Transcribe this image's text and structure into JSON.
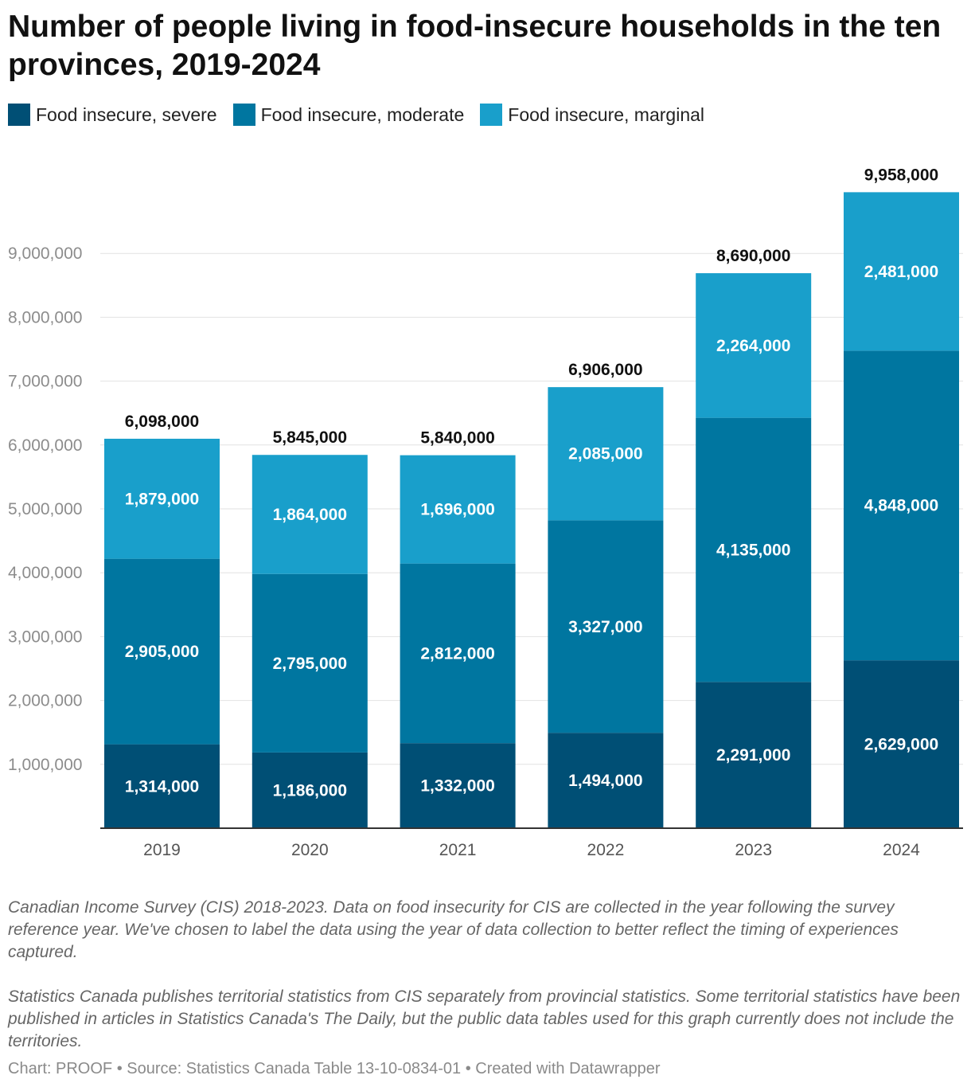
{
  "title": "Number of people living in food-insecure households in the ten provinces, 2019-2024",
  "legend": [
    {
      "label": "Food insecure, severe",
      "color": "#004f75"
    },
    {
      "label": "Food insecure, moderate",
      "color": "#0076a0"
    },
    {
      "label": "Food insecure, marginal",
      "color": "#199fcb"
    }
  ],
  "chart_data": {
    "type": "bar",
    "stacked": true,
    "categories": [
      "2019",
      "2020",
      "2021",
      "2022",
      "2023",
      "2024"
    ],
    "series": [
      {
        "name": "Food insecure, severe",
        "color": "#004f75",
        "values": [
          1314000,
          1186000,
          1332000,
          1494000,
          2291000,
          2629000
        ],
        "labels": [
          "1,314,000",
          "1,186,000",
          "1,332,000",
          "1,494,000",
          "2,291,000",
          "2,629,000"
        ]
      },
      {
        "name": "Food insecure, moderate",
        "color": "#0076a0",
        "values": [
          2905000,
          2795000,
          2812000,
          3327000,
          4135000,
          4848000
        ],
        "labels": [
          "2,905,000",
          "2,795,000",
          "2,812,000",
          "3,327,000",
          "4,135,000",
          "4,848,000"
        ]
      },
      {
        "name": "Food insecure, marginal",
        "color": "#199fcb",
        "values": [
          1879000,
          1864000,
          1696000,
          2085000,
          2264000,
          2481000
        ],
        "labels": [
          "1,879,000",
          "1,864,000",
          "1,696,000",
          "2,085,000",
          "2,264,000",
          "2,481,000"
        ]
      }
    ],
    "totals": [
      6098000,
      5845000,
      5840000,
      6906000,
      8690000,
      9958000
    ],
    "total_labels": [
      "6,098,000",
      "5,845,000",
      "5,840,000",
      "6,906,000",
      "8,690,000",
      "9,958,000"
    ],
    "yticks": [
      1000000,
      2000000,
      3000000,
      4000000,
      5000000,
      6000000,
      7000000,
      8000000,
      9000000
    ],
    "ytick_labels": [
      "1,000,000",
      "2,000,000",
      "3,000,000",
      "4,000,000",
      "5,000,000",
      "6,000,000",
      "7,000,000",
      "8,000,000",
      "9,000,000"
    ],
    "ylim": [
      0,
      10000000
    ],
    "grid": true,
    "legend_position": "top-left"
  },
  "notes": [
    "Canadian Income Survey (CIS) 2018-2023. Data on food insecurity for CIS are collected in the year following the survey reference year. We've chosen to label the data using the year of data collection to better reflect the timing of experiences captured.",
    "Statistics Canada publishes territorial statistics from CIS separately from provincial statistics. Some territorial statistics have been published in articles in Statistics Canada's The Daily, but the public data tables used for this graph currently does not include the territories."
  ],
  "footer": "Chart: PROOF • Source: Statistics Canada Table 13-10-0834-01 • Created with Datawrapper"
}
